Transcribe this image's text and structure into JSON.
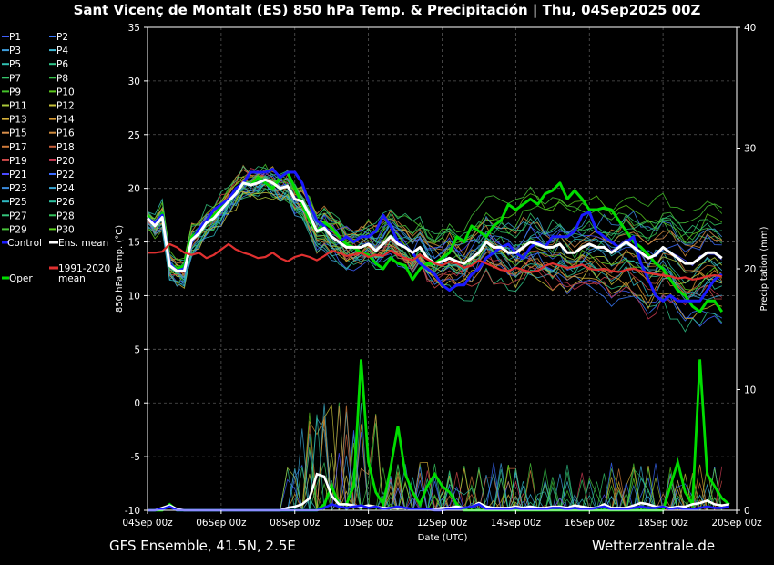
{
  "header": {
    "title": "Sant Vicenç de Montalt  (ES)  850 hPa Temp. & Precipitación | Thu, 04Sep2025 00Z"
  },
  "footer": {
    "model": "GFS Ensemble, 41.5N, 2.5E",
    "brand": "Wetterzentrale.de"
  },
  "chart_data": {
    "type": "line",
    "xlabel": "Date (UTC)",
    "ylabel": "850 hPa Temp. (°C)",
    "y2label": "Precipitation (mm)",
    "ylim": [
      -10,
      35
    ],
    "y2lim": [
      0,
      40
    ],
    "yticks": [
      "35",
      "30",
      "25",
      "20",
      "15",
      "10",
      "5",
      "0",
      "-5",
      "-10"
    ],
    "y2ticks": [
      "40",
      "30",
      "20",
      "10",
      "0"
    ],
    "xticks": [
      "04Sep 00z",
      "06Sep 00z",
      "08Sep 00z",
      "10Sep 00z",
      "12Sep 00z",
      "14Sep 00z",
      "16Sep 00z",
      "18Sep 00z",
      "20Sep 00z"
    ],
    "x_start": "04Sep 00z",
    "x_step_hours": 6,
    "grid": true,
    "legend_placement": "left outside",
    "legend": [
      {
        "label": "P1",
        "color": "#3f5fff"
      },
      {
        "label": "P2",
        "color": "#3a7bff"
      },
      {
        "label": "P3",
        "color": "#3e9ddc"
      },
      {
        "label": "P4",
        "color": "#3fb8d2"
      },
      {
        "label": "P5",
        "color": "#2fbfb0"
      },
      {
        "label": "P6",
        "color": "#2fc58a"
      },
      {
        "label": "P7",
        "color": "#35c46a"
      },
      {
        "label": "P8",
        "color": "#37c24a"
      },
      {
        "label": "P9",
        "color": "#44c22a"
      },
      {
        "label": "P10",
        "color": "#5cc81c"
      },
      {
        "label": "P11",
        "color": "#a9c83a"
      },
      {
        "label": "P12",
        "color": "#c8c23a"
      },
      {
        "label": "P13",
        "color": "#d8b23a"
      },
      {
        "label": "P14",
        "color": "#d89a32"
      },
      {
        "label": "P15",
        "color": "#d88e4a"
      },
      {
        "label": "P16",
        "color": "#cf8a3c"
      },
      {
        "label": "P17",
        "color": "#cf7a3a"
      },
      {
        "label": "P18",
        "color": "#c8603c"
      },
      {
        "label": "P19",
        "color": "#cf4a4a"
      },
      {
        "label": "P20",
        "color": "#c93a52"
      },
      {
        "label": "P21",
        "color": "#4a4aff"
      },
      {
        "label": "P22",
        "color": "#3a6aff"
      },
      {
        "label": "P23",
        "color": "#3a8adc"
      },
      {
        "label": "P24",
        "color": "#3aa6d2"
      },
      {
        "label": "P25",
        "color": "#2eb8c2"
      },
      {
        "label": "P26",
        "color": "#2ec2a0"
      },
      {
        "label": "P27",
        "color": "#34c47c"
      },
      {
        "label": "P28",
        "color": "#34c45c"
      },
      {
        "label": "P29",
        "color": "#48c43a"
      },
      {
        "label": "P30",
        "color": "#5ed21e"
      },
      {
        "label": "Control",
        "color": "#1a1aff"
      },
      {
        "label": "Ens. mean",
        "color": "#ffffff"
      },
      {
        "label": "1991-2020 mean",
        "color": "#e03030"
      },
      {
        "label": "Oper",
        "color": "#00dd00"
      }
    ],
    "series": [
      {
        "name": "Oper",
        "color": "#00dd00",
        "values": [
          17.5,
          16.5,
          17.7,
          13.0,
          12.5,
          12.8,
          15.5,
          16.0,
          17.0,
          17.5,
          18.3,
          18.8,
          19.5,
          20.5,
          20.3,
          21.0,
          20.5,
          20.0,
          21.0,
          21.5,
          20.0,
          18.5,
          17.0,
          16.0,
          16.8,
          16.3,
          15.5,
          14.8,
          14.5,
          14.0,
          13.8,
          13.0,
          12.5,
          13.5,
          13.0,
          12.8,
          11.5,
          12.5,
          13.0,
          13.0,
          13.5,
          14.0,
          15.5,
          15.0,
          16.5,
          16.0,
          15.5,
          16.5,
          17.0,
          18.5,
          18.0,
          18.5,
          19.0,
          18.5,
          19.5,
          19.8,
          20.5,
          19.0,
          19.8,
          19.0,
          18.0,
          18.0,
          18.2,
          18.0,
          17.0,
          16.0,
          15.0,
          14.5,
          13.8,
          13.0,
          12.5,
          11.5,
          10.5,
          10.0,
          9.0,
          8.5,
          9.5,
          9.5,
          8.5
        ]
      },
      {
        "name": "Control",
        "color": "#1a1aff",
        "values": [
          17.2,
          16.8,
          17.5,
          13.0,
          12.3,
          12.5,
          15.0,
          16.2,
          17.0,
          18.0,
          18.5,
          19.0,
          20.0,
          20.5,
          21.5,
          21.5,
          21.5,
          21.8,
          21.0,
          21.5,
          21.5,
          20.5,
          18.5,
          17.0,
          16.5,
          15.5,
          15.0,
          15.5,
          15.0,
          15.5,
          15.5,
          16.0,
          17.5,
          16.5,
          15.0,
          14.5,
          14.0,
          13.0,
          12.5,
          12.0,
          11.0,
          10.5,
          11.0,
          11.0,
          12.0,
          12.5,
          13.5,
          14.0,
          14.5,
          14.8,
          14.0,
          13.5,
          14.5,
          15.0,
          14.5,
          15.5,
          15.5,
          15.5,
          16.0,
          17.5,
          17.8,
          16.0,
          15.5,
          15.0,
          14.5,
          15.0,
          15.5,
          13.0,
          11.5,
          10.0,
          9.5,
          10.0,
          9.5,
          9.5,
          9.5,
          9.5,
          10.5,
          11.5,
          12.0
        ]
      },
      {
        "name": "Ens. mean",
        "color": "#ffffff",
        "values": [
          17.2,
          16.5,
          17.3,
          12.8,
          12.3,
          12.3,
          15.2,
          15.8,
          16.8,
          17.2,
          18.0,
          18.8,
          19.5,
          20.5,
          20.3,
          20.5,
          20.8,
          20.5,
          20.0,
          20.2,
          19.0,
          18.8,
          17.5,
          16.0,
          16.3,
          15.5,
          15.0,
          14.5,
          14.5,
          14.5,
          14.8,
          14.2,
          14.8,
          15.5,
          14.8,
          14.5,
          14.0,
          14.5,
          13.5,
          13.0,
          13.2,
          13.5,
          13.2,
          13.0,
          13.5,
          14.0,
          15.0,
          14.5,
          14.5,
          14.0,
          14.0,
          14.5,
          15.0,
          14.8,
          14.5,
          14.5,
          14.8,
          14.0,
          14.0,
          14.5,
          14.8,
          14.5,
          14.5,
          14.0,
          14.5,
          15.0,
          14.5,
          14.0,
          13.5,
          13.8,
          14.5,
          14.0,
          13.5,
          13.0,
          13.0,
          13.5,
          14.0,
          14.0,
          13.5
        ]
      },
      {
        "name": "1991-2020 mean",
        "color": "#e03030",
        "values": [
          14.0,
          14.0,
          14.1,
          14.8,
          14.5,
          14.0,
          13.8,
          14.0,
          13.5,
          13.8,
          14.3,
          14.8,
          14.3,
          14.0,
          13.8,
          13.5,
          13.6,
          14.0,
          13.5,
          13.2,
          13.6,
          13.8,
          13.6,
          13.3,
          13.7,
          14.2,
          14.0,
          13.7,
          13.8,
          14.0,
          13.6,
          13.8,
          13.7,
          14.2,
          13.8,
          13.5,
          13.3,
          13.8,
          13.4,
          13.0,
          12.8,
          13.2,
          13.0,
          12.6,
          12.8,
          13.3,
          13.0,
          12.7,
          12.4,
          12.3,
          12.6,
          12.4,
          12.2,
          12.3,
          12.8,
          13.0,
          12.8,
          12.6,
          12.7,
          12.9,
          12.5,
          12.4,
          12.5,
          12.3,
          12.2,
          12.4,
          12.5,
          12.3,
          12.1,
          12.0,
          11.9,
          11.8,
          11.6,
          11.7,
          11.5,
          11.6,
          11.8,
          11.9,
          11.8
        ]
      }
    ],
    "precipitation": [
      {
        "name": "Oper",
        "color": "#00dd00",
        "values": [
          0,
          0,
          0,
          0.5,
          0,
          0,
          0,
          0,
          0,
          0,
          0,
          0,
          0,
          0,
          0,
          0,
          0,
          0,
          0,
          0,
          0,
          0,
          0,
          0,
          0.5,
          2.0,
          0.5,
          0.5,
          2.0,
          12.5,
          4.0,
          1.5,
          0.5,
          3.5,
          7.0,
          3.0,
          1.5,
          0.5,
          2.0,
          3.0,
          2.0,
          1.5,
          0.5,
          0,
          0,
          0,
          0,
          0,
          0,
          0,
          0,
          0,
          0,
          0,
          0,
          0,
          0,
          0,
          0,
          0,
          0,
          0,
          0,
          0,
          0,
          0,
          0,
          0,
          0,
          0,
          0,
          2.0,
          4.0,
          1.5,
          0.5,
          12.5,
          3.0,
          2.0,
          1.0,
          0.5
        ]
      },
      {
        "name": "Ens. mean",
        "color": "#ffffff",
        "values": [
          0,
          0,
          0.2,
          0.4,
          0.1,
          0,
          0,
          0,
          0,
          0,
          0,
          0,
          0,
          0,
          0,
          0,
          0,
          0,
          0,
          0.2,
          0.3,
          0.5,
          1.0,
          3.0,
          2.8,
          1.2,
          0.5,
          0.5,
          0.4,
          0.3,
          0.4,
          0.3,
          0.2,
          0.2,
          0.2,
          0.2,
          0.1,
          0.1,
          0.1,
          0.1,
          0.2,
          0.2,
          0.3,
          0.2,
          0.3,
          0.6,
          0.3,
          0.2,
          0.2,
          0.2,
          0.3,
          0.2,
          0.3,
          0.2,
          0.2,
          0.3,
          0.3,
          0.2,
          0.4,
          0.3,
          0.2,
          0.2,
          0.5,
          0.2,
          0.2,
          0.2,
          0.4,
          0.6,
          0.5,
          0.3,
          0.3,
          0.2,
          0.3,
          0.3,
          0.5,
          0.6,
          0.8,
          0.5,
          0.4,
          0.5
        ]
      },
      {
        "name": "Control",
        "color": "#1a1aff",
        "values": [
          0,
          0,
          0.1,
          0.3,
          0,
          0,
          0,
          0,
          0,
          0,
          0,
          0,
          0,
          0,
          0,
          0,
          0,
          0,
          0,
          0,
          0,
          0,
          0,
          0,
          0.2,
          0.5,
          0.3,
          0.2,
          0.3,
          0.4,
          0.2,
          0.3,
          0.1,
          0.2,
          0.3,
          0.2,
          0.1,
          0.1,
          0.1,
          0,
          0,
          0.1,
          0.1,
          0.2,
          0.3,
          0.5,
          0.1,
          0.1,
          0.1,
          0.1,
          0.2,
          0.1,
          0.1,
          0.1,
          0.1,
          0.2,
          0.2,
          0.1,
          0.2,
          0.1,
          0.1,
          0.2,
          0.3,
          0.1,
          0.1,
          0.1,
          0.2,
          0.3,
          0.2,
          0.2,
          0.3,
          0.1,
          0.2,
          0.1,
          0.1,
          0.2,
          0.3,
          0.2,
          0.2,
          0.3
        ]
      }
    ]
  }
}
